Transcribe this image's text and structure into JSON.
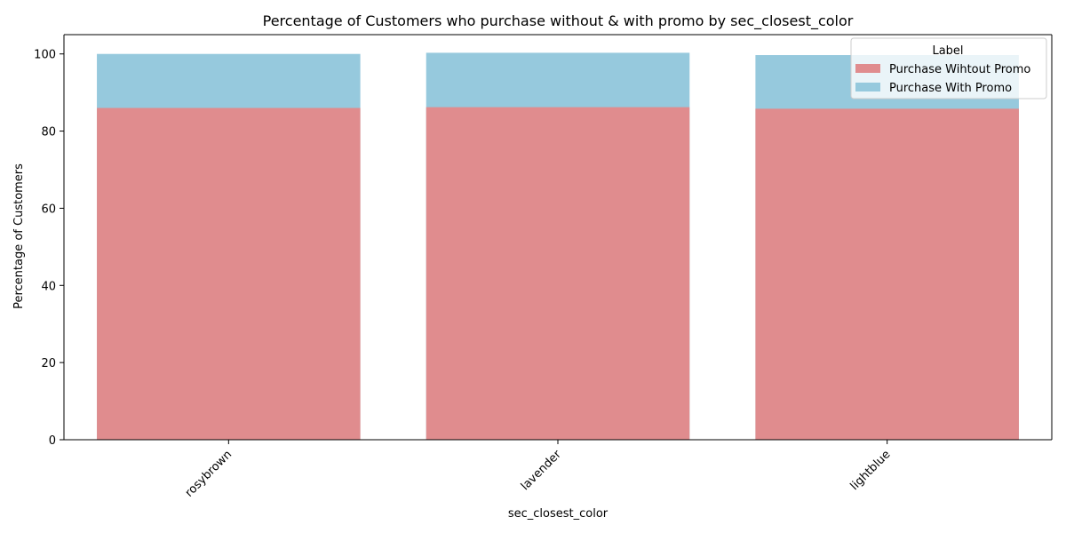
{
  "chart_data": {
    "type": "bar",
    "title": "Percentage of Customers who purchase without & with promo by sec_closest_color",
    "xlabel": "sec_closest_color",
    "ylabel": "Percentage of Customers",
    "categories": [
      "rosybrown",
      "lavender",
      "lightblue"
    ],
    "ylim": [
      0,
      105
    ],
    "yticks": [
      0,
      20,
      40,
      60,
      80,
      100
    ],
    "grid": false,
    "layering": "overlaid",
    "series": [
      {
        "name": "Purchase With Promo",
        "values": [
          100.0,
          100.3,
          99.7
        ],
        "color": "#96c9dd"
      },
      {
        "name": "Purchase Wihtout Promo",
        "values": [
          86.0,
          86.2,
          85.8
        ],
        "color": "#e08c8e"
      }
    ],
    "legend": {
      "title": "Label",
      "position": "top-right",
      "entries": [
        {
          "label": "Purchase Wihtout Promo",
          "color": "#e08c8e"
        },
        {
          "label": "Purchase With Promo",
          "color": "#96c9dd"
        }
      ]
    }
  }
}
